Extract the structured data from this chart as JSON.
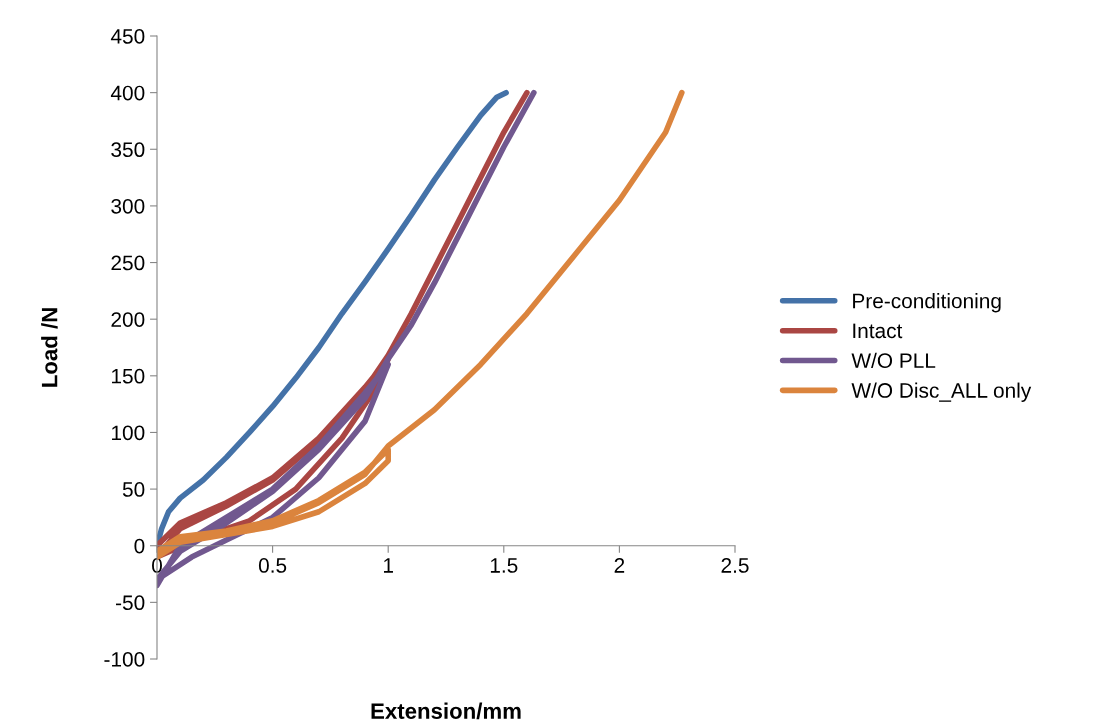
{
  "chart_data": {
    "type": "line",
    "xlabel": "Extension/mm",
    "ylabel": "Load /N",
    "xlim": [
      0,
      2.5
    ],
    "ylim": [
      -100,
      450
    ],
    "xticks": [
      0,
      0.5,
      1,
      1.5,
      2,
      2.5
    ],
    "yticks": [
      -100,
      -50,
      0,
      50,
      100,
      150,
      200,
      250,
      300,
      350,
      400,
      450
    ],
    "grid": false,
    "legend": "right",
    "marker": "none",
    "line_style": "solid",
    "series": [
      {
        "name": "Pre-conditioning",
        "color": "#4472a8",
        "x": [
          0,
          0.02,
          0.05,
          0.1,
          0.2,
          0.3,
          0.4,
          0.5,
          0.6,
          0.7,
          0.8,
          0.9,
          1.0,
          1.1,
          1.2,
          1.3,
          1.4,
          1.47,
          1.51
        ],
        "values": [
          0,
          15,
          30,
          42,
          58,
          78,
          100,
          123,
          148,
          175,
          205,
          233,
          262,
          292,
          323,
          352,
          380,
          396,
          400
        ]
      },
      {
        "name": "Intact",
        "color": "#aa4643",
        "x": [
          0,
          0.1,
          0.3,
          0.5,
          0.7,
          0.9,
          1.0,
          0.95,
          0.8,
          0.6,
          0.4,
          0.2,
          0,
          0.1,
          0.3,
          0.5,
          0.7,
          0.9,
          1.0,
          1.1,
          1.2,
          1.3,
          1.4,
          1.5,
          1.6
        ],
        "values": [
          0,
          20,
          38,
          60,
          95,
          140,
          165,
          140,
          95,
          50,
          22,
          8,
          -10,
          15,
          35,
          58,
          93,
          138,
          168,
          205,
          245,
          285,
          325,
          365,
          400
        ]
      },
      {
        "name": "W/O PLL",
        "color": "#71588f",
        "x": [
          0,
          0.1,
          0.3,
          0.5,
          0.7,
          0.9,
          1.0,
          0.9,
          0.7,
          0.5,
          0.3,
          0.15,
          0,
          0.1,
          0.3,
          0.5,
          0.7,
          0.9,
          1.0,
          1.1,
          1.2,
          1.3,
          1.4,
          1.5,
          1.63
        ],
        "values": [
          -35,
          0,
          25,
          50,
          88,
          135,
          160,
          110,
          60,
          25,
          5,
          -10,
          -30,
          -5,
          20,
          48,
          85,
          130,
          165,
          195,
          232,
          272,
          312,
          352,
          400
        ]
      },
      {
        "name": "W/O Disc_ALL only",
        "color": "#db843d",
        "x": [
          0,
          0.1,
          0.3,
          0.5,
          0.7,
          0.9,
          1.0,
          1.0,
          0.9,
          0.7,
          0.5,
          0.3,
          0.1,
          0,
          0.1,
          0.3,
          0.5,
          0.7,
          0.9,
          1.0,
          1.2,
          1.4,
          1.6,
          1.8,
          2.0,
          2.2,
          2.27
        ],
        "values": [
          -5,
          8,
          13,
          22,
          40,
          65,
          85,
          75,
          55,
          30,
          17,
          10,
          3,
          -10,
          5,
          12,
          20,
          38,
          63,
          88,
          120,
          160,
          205,
          255,
          305,
          365,
          400
        ]
      }
    ]
  }
}
